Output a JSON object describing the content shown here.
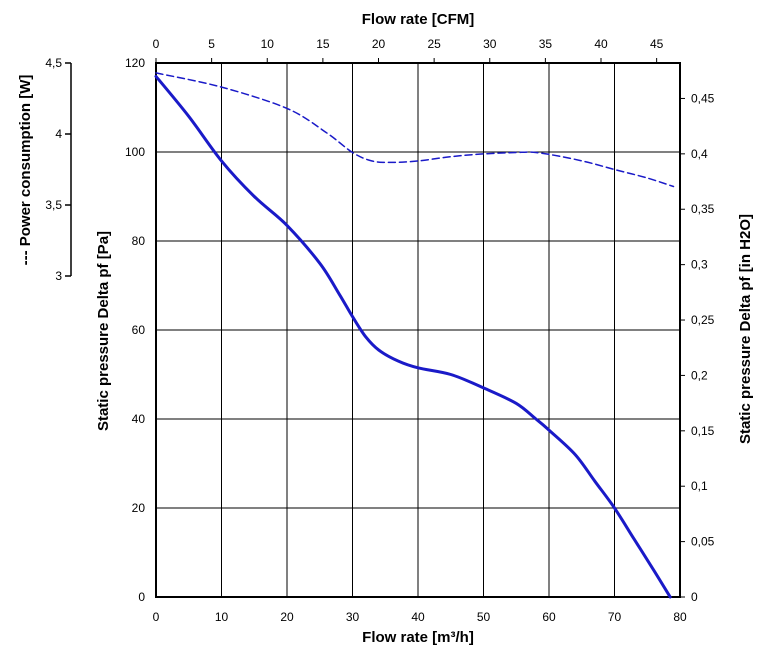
{
  "chart_data": {
    "type": "line",
    "title": "",
    "xlabel": "Flow rate [m³/h]",
    "x2label": "Flow rate [CFM]",
    "ylabel": "Static pressure Delta pf [Pa]",
    "y2label": "Static pressure Delta pf [in H2O]",
    "y3label": "--- Power consumption [W]",
    "xlim": [
      0,
      80
    ],
    "ylim": [
      0,
      120
    ],
    "x2lim": [
      0,
      47.1
    ],
    "y2lim": [
      0,
      0.482
    ],
    "y3lim": [
      3,
      4.5
    ],
    "x_ticks": [
      "0",
      "10",
      "20",
      "30",
      "40",
      "50",
      "60",
      "70",
      "80"
    ],
    "x2_ticks": [
      "0",
      "5",
      "10",
      "15",
      "20",
      "25",
      "30",
      "35",
      "40",
      "45"
    ],
    "y_ticks": [
      "0",
      "20",
      "40",
      "60",
      "80",
      "100",
      "120"
    ],
    "y2_ticks": [
      "0",
      "0,05",
      "0,1",
      "0,15",
      "0,2",
      "0,25",
      "0,3",
      "0,35",
      "0,4",
      "0,45"
    ],
    "y3_ticks": [
      "3",
      "3,5",
      "4",
      "4,5"
    ],
    "grid": true,
    "series": [
      {
        "axis": "pressure",
        "style": "solid",
        "color": "#1a1ac8",
        "points": [
          [
            0,
            117
          ],
          [
            5,
            108
          ],
          [
            10,
            98
          ],
          [
            15,
            90
          ],
          [
            20,
            83.5
          ],
          [
            25,
            75
          ],
          [
            28,
            68
          ],
          [
            30,
            63
          ],
          [
            32,
            58.5
          ],
          [
            34,
            55.5
          ],
          [
            37,
            53
          ],
          [
            40,
            51.5
          ],
          [
            45,
            50
          ],
          [
            50,
            47
          ],
          [
            55,
            43.5
          ],
          [
            58,
            40
          ],
          [
            60,
            37.5
          ],
          [
            64,
            32
          ],
          [
            67,
            26
          ],
          [
            70,
            20
          ],
          [
            73,
            13
          ],
          [
            76,
            6
          ],
          [
            78.5,
            0
          ]
        ]
      },
      {
        "axis": "power",
        "style": "dashed",
        "color": "#1a1ac8",
        "points": [
          [
            0,
            4.43
          ],
          [
            10,
            4.33
          ],
          [
            20,
            4.18
          ],
          [
            26,
            4.01
          ],
          [
            30,
            3.87
          ],
          [
            33,
            3.81
          ],
          [
            36,
            3.8
          ],
          [
            40,
            3.81
          ],
          [
            45,
            3.84
          ],
          [
            50,
            3.86
          ],
          [
            55,
            3.87
          ],
          [
            58,
            3.87
          ],
          [
            62,
            3.84
          ],
          [
            66,
            3.8
          ],
          [
            70,
            3.75
          ],
          [
            75,
            3.69
          ],
          [
            79,
            3.63
          ]
        ]
      }
    ]
  }
}
